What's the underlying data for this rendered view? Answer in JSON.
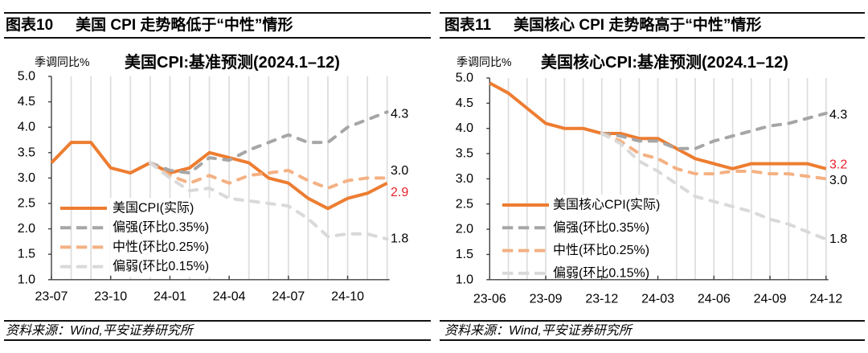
{
  "figures": [
    {
      "number": "图表10",
      "title": "美国 CPI 走势略低于“中性”情形",
      "source": "资料来源：Wind,平安证券研究所"
    },
    {
      "number": "图表11",
      "title": "美国核心 CPI 走势略高于“中性”情形",
      "source": "资料来源：Wind,平安证券研究所"
    }
  ],
  "chart_data": [
    {
      "type": "line",
      "title": "美国CPI:基准预测(2024.1–12)",
      "ylabel": "季调同比%",
      "xlabel": "",
      "ylim": [
        1.0,
        5.0
      ],
      "yticks": [
        "1.0",
        "1.5",
        "2.0",
        "2.5",
        "3.0",
        "3.5",
        "4.0",
        "4.5",
        "5.0"
      ],
      "x": [
        "23-07",
        "23-08",
        "23-09",
        "23-10",
        "23-11",
        "23-12",
        "24-01",
        "24-02",
        "24-03",
        "24-04",
        "24-05",
        "24-06",
        "24-07",
        "24-08",
        "24-09",
        "24-10",
        "24-11",
        "24-12"
      ],
      "xtick_labels": [
        "23-07",
        "23-10",
        "24-01",
        "24-04",
        "24-07",
        "24-10"
      ],
      "grid": "vertical",
      "legend_position": "bottom-left",
      "series": [
        {
          "name": "美国CPI(实际)",
          "color": "#ED7D31",
          "style": "solid",
          "values": [
            3.3,
            3.7,
            3.7,
            3.2,
            3.1,
            3.3,
            3.1,
            3.2,
            3.5,
            3.4,
            3.3,
            3.0,
            2.9,
            2.6,
            2.4,
            2.6,
            2.7,
            2.9
          ]
        },
        {
          "name": "偏强(环比0.35%)",
          "color": "#A6A6A6",
          "style": "dashed",
          "values": [
            null,
            null,
            null,
            null,
            null,
            3.3,
            3.15,
            3.1,
            3.4,
            3.35,
            3.55,
            3.7,
            3.85,
            3.7,
            3.7,
            4.0,
            4.15,
            4.3
          ]
        },
        {
          "name": "中性(环比0.25%)",
          "color": "#F4B183",
          "style": "dashed",
          "values": [
            null,
            null,
            null,
            null,
            null,
            3.3,
            3.05,
            2.9,
            3.05,
            2.9,
            3.05,
            3.1,
            3.15,
            2.95,
            2.8,
            2.95,
            3.0,
            3.0
          ]
        },
        {
          "name": "偏弱(环比0.15%)",
          "color": "#D9D9D9",
          "style": "dashed",
          "values": [
            null,
            null,
            null,
            null,
            null,
            3.3,
            3.0,
            2.75,
            2.8,
            2.6,
            2.55,
            2.5,
            2.45,
            2.2,
            1.85,
            1.9,
            1.9,
            1.8
          ]
        }
      ],
      "end_labels": [
        {
          "text": "4.3",
          "value": 4.3,
          "color": "#000000"
        },
        {
          "text": "3.0",
          "value": 3.0,
          "color": "#000000"
        },
        {
          "text": "2.9",
          "value": 2.9,
          "color": "#E8202A"
        },
        {
          "text": "1.8",
          "value": 1.8,
          "color": "#000000"
        }
      ]
    },
    {
      "type": "line",
      "title": "美国核心CPI:基准预测(2024.1–12)",
      "ylabel": "季调同比%",
      "xlabel": "",
      "ylim": [
        1.0,
        5.0
      ],
      "yticks": [
        "1.0",
        "1.5",
        "2.0",
        "2.5",
        "3.0",
        "3.5",
        "4.0",
        "4.5",
        "5.0"
      ],
      "x": [
        "23-06",
        "23-07",
        "23-08",
        "23-09",
        "23-10",
        "23-11",
        "23-12",
        "24-01",
        "24-02",
        "24-03",
        "24-04",
        "24-05",
        "24-06",
        "24-07",
        "24-08",
        "24-09",
        "24-10",
        "24-11",
        "24-12"
      ],
      "xtick_labels": [
        "23-06",
        "23-09",
        "23-12",
        "24-03",
        "24-06",
        "24-09",
        "24-12"
      ],
      "grid": "vertical",
      "legend_position": "bottom-left",
      "series": [
        {
          "name": "美国核心CPI(实际)",
          "color": "#ED7D31",
          "style": "solid",
          "values": [
            4.9,
            4.7,
            4.4,
            4.1,
            4.0,
            4.0,
            3.9,
            3.9,
            3.8,
            3.8,
            3.6,
            3.4,
            3.3,
            3.2,
            3.3,
            3.3,
            3.3,
            3.3,
            3.2
          ]
        },
        {
          "name": "偏强(环比0.35%)",
          "color": "#A6A6A6",
          "style": "dashed",
          "values": [
            null,
            null,
            null,
            null,
            null,
            null,
            3.9,
            3.85,
            3.75,
            3.75,
            3.6,
            3.6,
            3.75,
            3.85,
            3.95,
            4.05,
            4.1,
            4.2,
            4.3
          ]
        },
        {
          "name": "中性(环比0.25%)",
          "color": "#F4B183",
          "style": "dashed",
          "values": [
            null,
            null,
            null,
            null,
            null,
            null,
            3.9,
            3.75,
            3.5,
            3.4,
            3.2,
            3.1,
            3.1,
            3.15,
            3.15,
            3.1,
            3.1,
            3.05,
            3.0
          ]
        },
        {
          "name": "偏弱(环比0.15%)",
          "color": "#D9D9D9",
          "style": "dashed",
          "values": [
            null,
            null,
            null,
            null,
            null,
            null,
            3.9,
            3.7,
            3.35,
            3.15,
            2.9,
            2.65,
            2.55,
            2.45,
            2.35,
            2.2,
            2.1,
            1.95,
            1.8
          ]
        }
      ],
      "end_labels": [
        {
          "text": "4.3",
          "value": 4.3,
          "color": "#000000"
        },
        {
          "text": "3.2",
          "value": 3.2,
          "color": "#E8202A"
        },
        {
          "text": "3.0",
          "value": 3.0,
          "color": "#000000"
        },
        {
          "text": "1.8",
          "value": 1.8,
          "color": "#000000"
        }
      ]
    }
  ]
}
